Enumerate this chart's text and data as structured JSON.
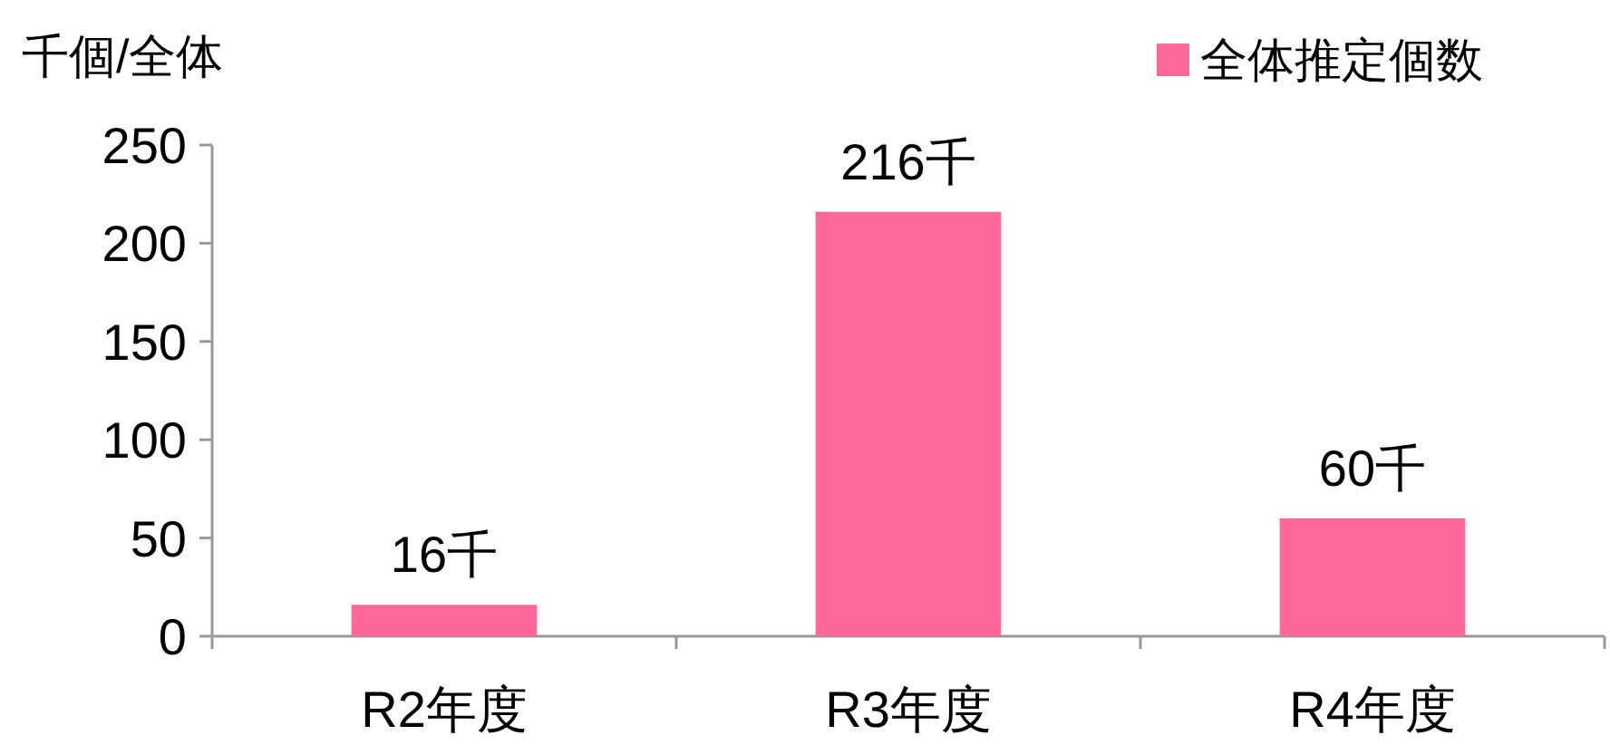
{
  "chart_data": {
    "type": "bar",
    "ylabel": "千個/全体",
    "categories": [
      "R2年度",
      "R3年度",
      "R4年度"
    ],
    "series": [
      {
        "name": "全体推定個数",
        "color": "#ff6699",
        "values": [
          16,
          216,
          60
        ],
        "value_labels": [
          "16千",
          "216千",
          "60千"
        ]
      }
    ],
    "ylim": [
      0,
      250
    ],
    "yticks": [
      0,
      50,
      100,
      150,
      200,
      250
    ],
    "legend": "top right"
  }
}
